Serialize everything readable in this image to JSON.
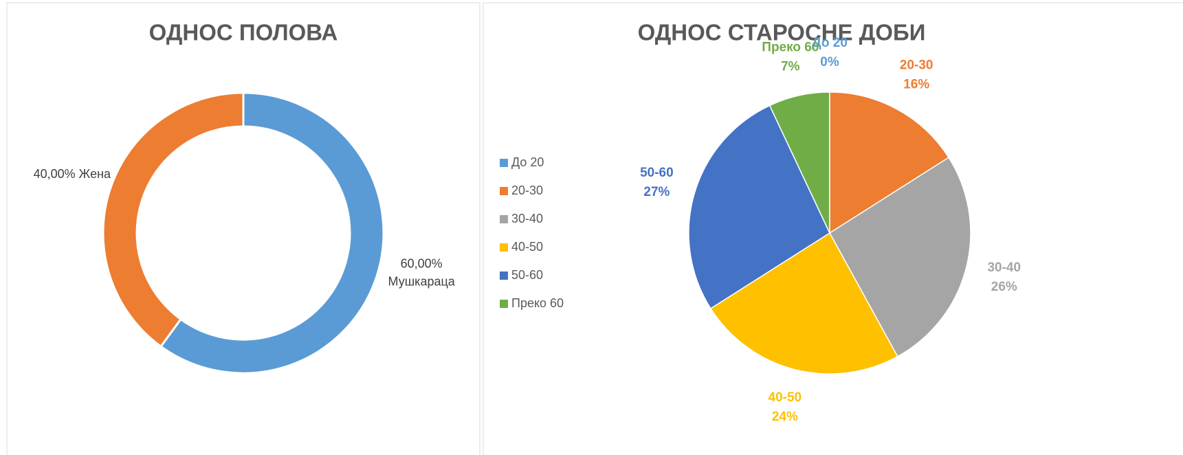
{
  "chart_data": [
    {
      "type": "donut",
      "title": "ОДНОС ПОЛОВА",
      "categories": [
        "Мушкараца",
        "Жена"
      ],
      "values": [
        60,
        40
      ],
      "value_labels": [
        "60,00%",
        "40,00%"
      ],
      "colors": [
        "#5b9bd5",
        "#ed7d31"
      ]
    },
    {
      "type": "pie",
      "title": "ОДНОС СТАРОСНЕ ДОБИ",
      "categories": [
        "До 20",
        "20-30",
        "30-40",
        "40-50",
        "50-60",
        "Преко 60"
      ],
      "values": [
        0,
        16,
        26,
        24,
        27,
        7
      ],
      "value_labels": [
        "0%",
        "16%",
        "26%",
        "24%",
        "27%",
        "7%"
      ],
      "colors": [
        "#5b9bd5",
        "#ed7d31",
        "#a5a5a5",
        "#ffc000",
        "#4472c4",
        "#70ad47"
      ],
      "legend": "left"
    }
  ]
}
